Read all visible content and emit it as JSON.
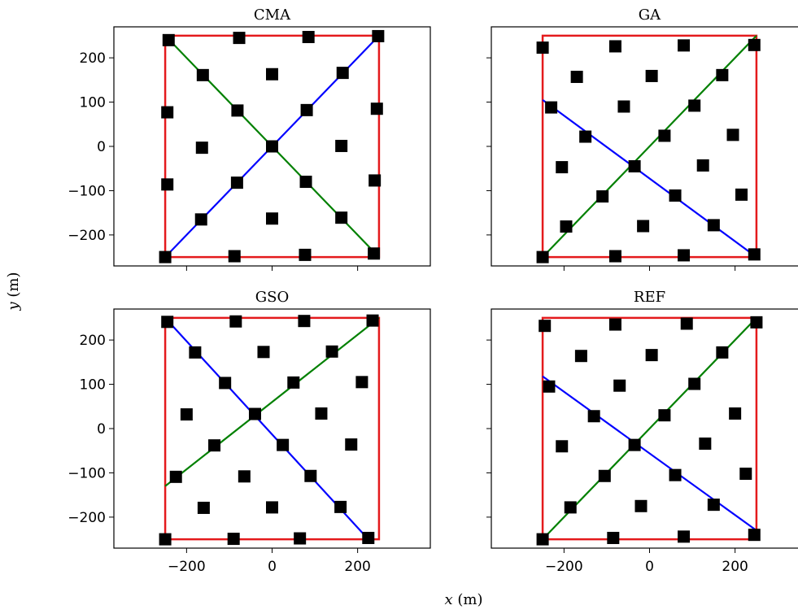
{
  "figure": {
    "xlabel_var": "x",
    "xlabel_unit": " (m)",
    "ylabel_var": "y",
    "ylabel_unit": " (m)"
  },
  "colors": {
    "boundary": "#e41a1c",
    "diag_blue": "#0000ff",
    "diag_green": "#008000",
    "turbine": "#000000"
  },
  "chart_data": [
    {
      "type": "scatter",
      "title": "CMA",
      "xlim": [
        -370,
        370
      ],
      "ylim": [
        -270,
        270
      ],
      "xticks": [
        -200,
        0,
        200
      ],
      "yticks": [
        -200,
        -100,
        0,
        100,
        200
      ],
      "show_xticklabels": false,
      "show_yticklabels": true,
      "boundary": [
        [
          -250,
          -250
        ],
        [
          250,
          -250
        ],
        [
          250,
          250
        ],
        [
          -250,
          250
        ]
      ],
      "lines": [
        {
          "color_key": "diag_blue",
          "points": [
            [
              -250,
              -250
            ],
            [
              250,
              250
            ]
          ]
        },
        {
          "color_key": "diag_green",
          "points": [
            [
              -250,
              250
            ],
            [
              250,
              -250
            ]
          ]
        }
      ],
      "turbines": [
        [
          -242,
          240
        ],
        [
          -77,
          245
        ],
        [
          85,
          247
        ],
        [
          248,
          249
        ],
        [
          -162,
          161
        ],
        [
          0,
          163
        ],
        [
          165,
          166
        ],
        [
          -245,
          77
        ],
        [
          -81,
          81
        ],
        [
          81,
          82
        ],
        [
          245,
          85
        ],
        [
          -164,
          -3
        ],
        [
          0,
          0
        ],
        [
          162,
          1
        ],
        [
          -245,
          -86
        ],
        [
          -82,
          -82
        ],
        [
          79,
          -80
        ],
        [
          240,
          -77
        ],
        [
          -166,
          -165
        ],
        [
          0,
          -163
        ],
        [
          162,
          -161
        ],
        [
          -250,
          -250
        ],
        [
          -88,
          -248
        ],
        [
          77,
          -245
        ],
        [
          238,
          -242
        ]
      ]
    },
    {
      "type": "scatter",
      "title": "GA",
      "xlim": [
        -370,
        370
      ],
      "ylim": [
        -270,
        270
      ],
      "xticks": [
        -200,
        0,
        200
      ],
      "yticks": [
        -200,
        -100,
        0,
        100,
        200
      ],
      "show_xticklabels": false,
      "show_yticklabels": false,
      "boundary": [
        [
          -250,
          -250
        ],
        [
          250,
          -250
        ],
        [
          250,
          250
        ],
        [
          -250,
          250
        ]
      ],
      "lines": [
        {
          "color_key": "diag_green",
          "points": [
            [
              -250,
              -250
            ],
            [
              250,
              250
            ]
          ]
        },
        {
          "color_key": "diag_blue",
          "points": [
            [
              -250,
              105
            ],
            [
              250,
              -250
            ]
          ]
        }
      ],
      "turbines": [
        [
          -250,
          223
        ],
        [
          -80,
          226
        ],
        [
          80,
          228
        ],
        [
          245,
          229
        ],
        [
          -170,
          157
        ],
        [
          5,
          159
        ],
        [
          170,
          161
        ],
        [
          -230,
          88
        ],
        [
          -60,
          90
        ],
        [
          105,
          92
        ],
        [
          -205,
          -47
        ],
        [
          -150,
          22
        ],
        [
          35,
          24
        ],
        [
          195,
          26
        ],
        [
          -35,
          -45
        ],
        [
          125,
          -43
        ],
        [
          -195,
          -181
        ],
        [
          -110,
          -113
        ],
        [
          60,
          -111
        ],
        [
          215,
          -109
        ],
        [
          -15,
          -180
        ],
        [
          150,
          -178
        ],
        [
          -250,
          -250
        ],
        [
          -80,
          -248
        ],
        [
          80,
          -246
        ],
        [
          245,
          -244
        ]
      ]
    },
    {
      "type": "scatter",
      "title": "GSO",
      "xlim": [
        -370,
        370
      ],
      "ylim": [
        -270,
        270
      ],
      "xticks": [
        -200,
        0,
        200
      ],
      "yticks": [
        -200,
        -100,
        0,
        100,
        200
      ],
      "show_xticklabels": true,
      "show_yticklabels": true,
      "boundary": [
        [
          -250,
          -250
        ],
        [
          250,
          -250
        ],
        [
          250,
          250
        ],
        [
          -250,
          250
        ]
      ],
      "lines": [
        {
          "color_key": "diag_green",
          "points": [
            [
              -250,
              -130
            ],
            [
              250,
              250
            ]
          ]
        },
        {
          "color_key": "diag_blue",
          "points": [
            [
              -250,
              250
            ],
            [
              225,
              -250
            ]
          ]
        }
      ],
      "turbines": [
        [
          -245,
          241
        ],
        [
          -85,
          242
        ],
        [
          75,
          243
        ],
        [
          235,
          244
        ],
        [
          -180,
          172
        ],
        [
          -20,
          173
        ],
        [
          140,
          174
        ],
        [
          -110,
          103
        ],
        [
          50,
          104
        ],
        [
          210,
          105
        ],
        [
          -200,
          32
        ],
        [
          -40,
          33
        ],
        [
          115,
          34
        ],
        [
          -135,
          -38
        ],
        [
          25,
          -37
        ],
        [
          185,
          -36
        ],
        [
          -225,
          -109
        ],
        [
          -65,
          -108
        ],
        [
          90,
          -107
        ],
        [
          -160,
          -179
        ],
        [
          0,
          -178
        ],
        [
          160,
          -177
        ],
        [
          -250,
          -250
        ],
        [
          -90,
          -249
        ],
        [
          65,
          -248
        ],
        [
          225,
          -247
        ]
      ]
    },
    {
      "type": "scatter",
      "title": "REF",
      "xlim": [
        -370,
        370
      ],
      "ylim": [
        -270,
        270
      ],
      "xticks": [
        -200,
        0,
        200
      ],
      "yticks": [
        -200,
        -100,
        0,
        100,
        200
      ],
      "show_xticklabels": true,
      "show_yticklabels": false,
      "boundary": [
        [
          -250,
          -250
        ],
        [
          250,
          -250
        ],
        [
          250,
          250
        ],
        [
          -250,
          250
        ]
      ],
      "lines": [
        {
          "color_key": "diag_green",
          "points": [
            [
              -250,
              -250
            ],
            [
              250,
              250
            ]
          ]
        },
        {
          "color_key": "diag_blue",
          "points": [
            [
              -250,
              118
            ],
            [
              250,
              -230
            ]
          ]
        }
      ],
      "turbines": [
        [
          -245,
          232
        ],
        [
          -80,
          235
        ],
        [
          87,
          237
        ],
        [
          250,
          240
        ],
        [
          -160,
          164
        ],
        [
          5,
          166
        ],
        [
          170,
          172
        ],
        [
          -235,
          95
        ],
        [
          -70,
          97
        ],
        [
          105,
          101
        ],
        [
          -205,
          -40
        ],
        [
          -130,
          28
        ],
        [
          35,
          30
        ],
        [
          200,
          34
        ],
        [
          -35,
          -37
        ],
        [
          130,
          -34
        ],
        [
          -185,
          -178
        ],
        [
          -105,
          -107
        ],
        [
          60,
          -105
        ],
        [
          225,
          -102
        ],
        [
          -20,
          -175
        ],
        [
          150,
          -172
        ],
        [
          -250,
          -250
        ],
        [
          -85,
          -247
        ],
        [
          80,
          -244
        ],
        [
          245,
          -240
        ]
      ]
    }
  ]
}
